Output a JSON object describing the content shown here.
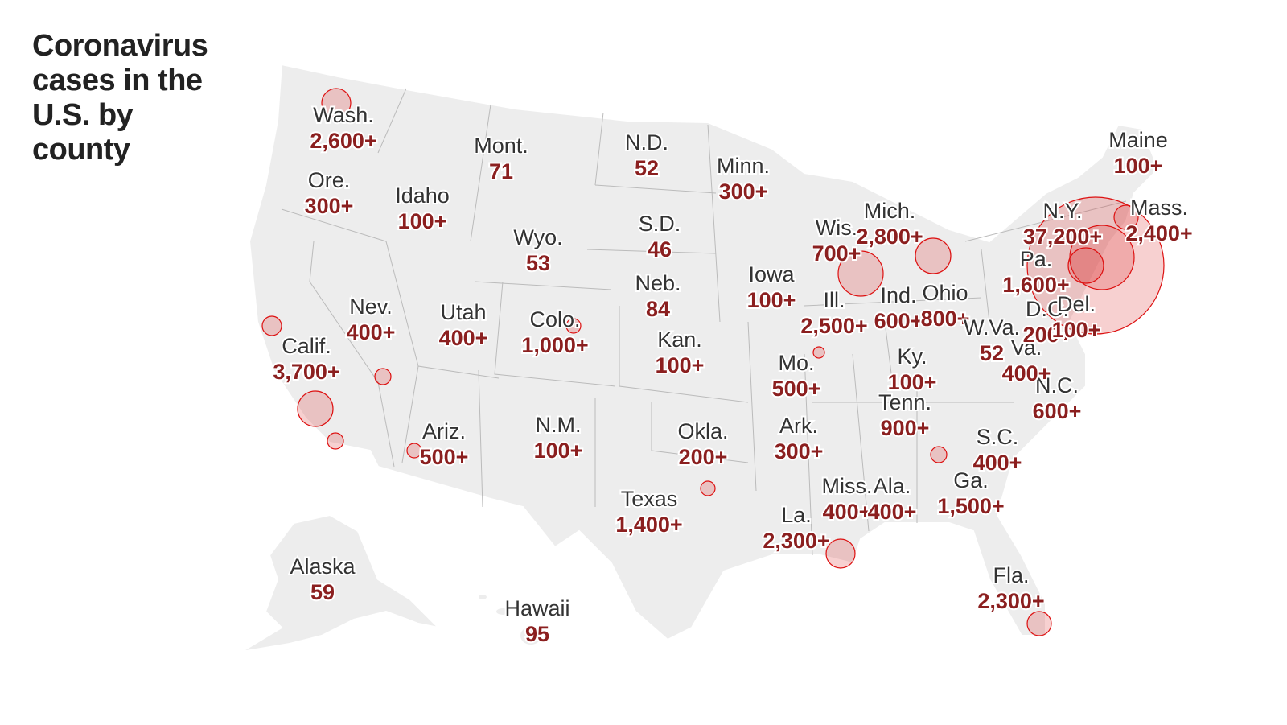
{
  "title": "Coronavirus cases in the U.S. by county",
  "states": [
    {
      "name": "Wash.",
      "cases": "2,600+"
    },
    {
      "name": "Ore.",
      "cases": "300+"
    },
    {
      "name": "Calif.",
      "cases": "3,700+"
    },
    {
      "name": "Nev.",
      "cases": "400+"
    },
    {
      "name": "Idaho",
      "cases": "100+"
    },
    {
      "name": "Mont.",
      "cases": "71"
    },
    {
      "name": "Wyo.",
      "cases": "53"
    },
    {
      "name": "Utah",
      "cases": "400+"
    },
    {
      "name": "Colo.",
      "cases": "1,000+"
    },
    {
      "name": "Ariz.",
      "cases": "500+"
    },
    {
      "name": "N.M.",
      "cases": "100+"
    },
    {
      "name": "N.D.",
      "cases": "52"
    },
    {
      "name": "S.D.",
      "cases": "46"
    },
    {
      "name": "Neb.",
      "cases": "84"
    },
    {
      "name": "Kan.",
      "cases": "100+"
    },
    {
      "name": "Okla.",
      "cases": "200+"
    },
    {
      "name": "Texas",
      "cases": "1,400+"
    },
    {
      "name": "Minn.",
      "cases": "300+"
    },
    {
      "name": "Iowa",
      "cases": "100+"
    },
    {
      "name": "Mo.",
      "cases": "500+"
    },
    {
      "name": "Ark.",
      "cases": "300+"
    },
    {
      "name": "La.",
      "cases": "2,300+"
    },
    {
      "name": "Miss.",
      "cases": "400+"
    },
    {
      "name": "Ala.",
      "cases": "400+"
    },
    {
      "name": "Ill.",
      "cases": "2,500+"
    },
    {
      "name": "Wis.",
      "cases": "700+"
    },
    {
      "name": "Mich.",
      "cases": "2,800+"
    },
    {
      "name": "Ind.",
      "cases": "600+"
    },
    {
      "name": "Ohio",
      "cases": "800+"
    },
    {
      "name": "Ky.",
      "cases": "100+"
    },
    {
      "name": "Tenn.",
      "cases": "900+"
    },
    {
      "name": "Ga.",
      "cases": "1,500+"
    },
    {
      "name": "S.C.",
      "cases": "400+"
    },
    {
      "name": "N.C.",
      "cases": "600+"
    },
    {
      "name": "Va.",
      "cases": "400+"
    },
    {
      "name": "W.Va.",
      "cases": "52"
    },
    {
      "name": "Pa.",
      "cases": "1,600+"
    },
    {
      "name": "D.C.",
      "cases": "200+"
    },
    {
      "name": "Del.",
      "cases": "100+"
    },
    {
      "name": "N.Y.",
      "cases": "37,200+"
    },
    {
      "name": "Mass.",
      "cases": "2,400+"
    },
    {
      "name": "Maine",
      "cases": "100+"
    },
    {
      "name": "Fla.",
      "cases": "2,300+"
    },
    {
      "name": "Alaska",
      "cases": "59"
    },
    {
      "name": "Hawaii",
      "cases": "95"
    }
  ]
}
